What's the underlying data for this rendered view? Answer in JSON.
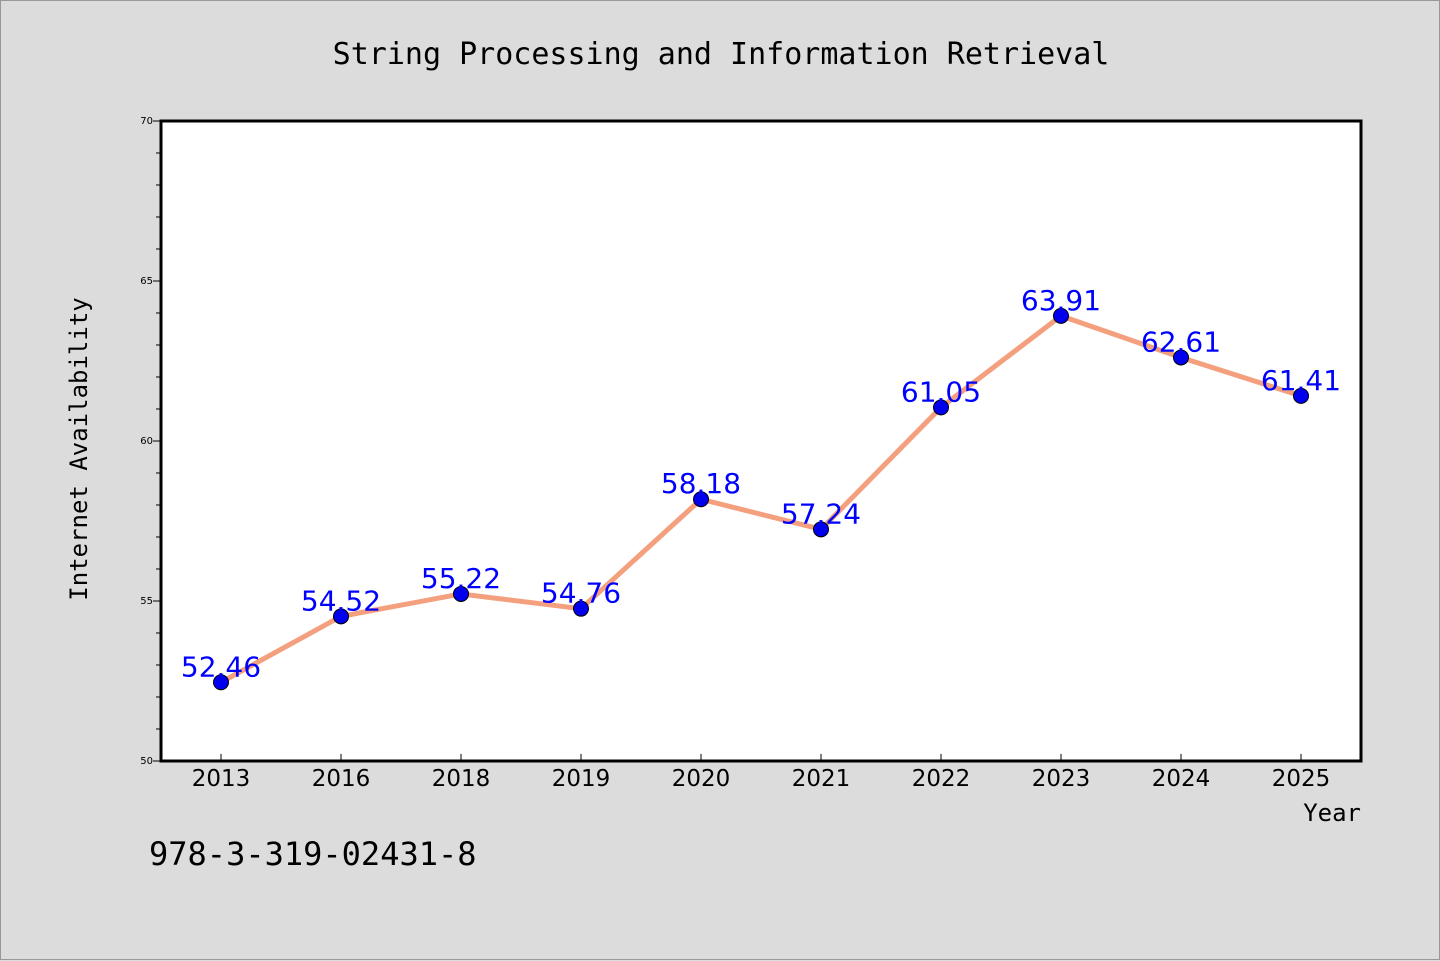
{
  "chart_data": {
    "type": "line",
    "title": "String Processing and Information Retrieval",
    "xlabel": "Year",
    "ylabel": "Internet Availability",
    "categories": [
      "2013",
      "2016",
      "2018",
      "2019",
      "2020",
      "2021",
      "2022",
      "2023",
      "2024",
      "2025"
    ],
    "series": [
      {
        "values": [
          52.46,
          54.52,
          55.22,
          54.76,
          58.18,
          57.24,
          61.05,
          63.91,
          62.61,
          61.41
        ],
        "labels": [
          "52.46",
          "54.52",
          "55.22",
          "54.76",
          "58.18",
          "57.24",
          "61.05",
          "63.91",
          "62.61",
          "61.41"
        ]
      }
    ],
    "ylim": [
      50,
      70
    ],
    "yticks": [
      "50",
      "55",
      "60",
      "65",
      "70"
    ],
    "grid": false,
    "legend": "none",
    "colors": {
      "line": "#f4a07e",
      "marker": "#0000ee",
      "data_label": "#0000ff",
      "axes_background": "#ffffff",
      "figure_background": "#dcdcdc"
    }
  },
  "footer_text": "978-3-319-02431-8"
}
